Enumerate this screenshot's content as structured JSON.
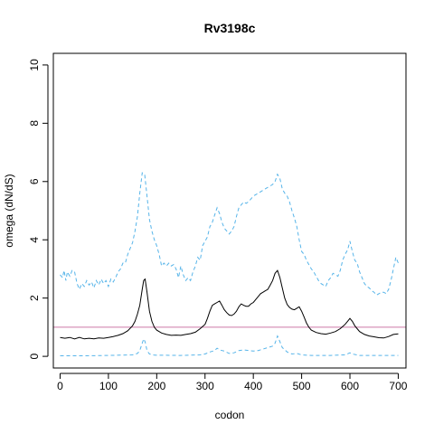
{
  "chart_data": {
    "type": "line",
    "title": "Rv3198c",
    "xlabel": "codon",
    "ylabel": "omega (dN/dS)",
    "xlim": [
      -14,
      716
    ],
    "ylim": [
      -0.4,
      10.4
    ],
    "x_ticks": [
      0,
      100,
      200,
      300,
      400,
      500,
      600,
      700
    ],
    "y_ticks": [
      0,
      2,
      4,
      6,
      8,
      10
    ],
    "grid": false,
    "legend": "none",
    "reference_line": {
      "y": 1,
      "color": "#cc79a7"
    },
    "series": [
      {
        "style": "dashed",
        "color": "#56b4e9",
        "role": "upper",
        "points": [
          [
            0,
            2.8
          ],
          [
            5,
            2.7
          ],
          [
            8,
            2.95
          ],
          [
            12,
            2.6
          ],
          [
            15,
            2.9
          ],
          [
            20,
            2.75
          ],
          [
            25,
            2.95
          ],
          [
            30,
            2.9
          ],
          [
            35,
            2.5
          ],
          [
            40,
            2.3
          ],
          [
            45,
            2.5
          ],
          [
            50,
            2.4
          ],
          [
            55,
            2.6
          ],
          [
            60,
            2.45
          ],
          [
            65,
            2.55
          ],
          [
            70,
            2.35
          ],
          [
            75,
            2.6
          ],
          [
            80,
            2.45
          ],
          [
            85,
            2.65
          ],
          [
            90,
            2.5
          ],
          [
            95,
            2.6
          ],
          [
            100,
            2.4
          ],
          [
            105,
            2.65
          ],
          [
            110,
            2.55
          ],
          [
            115,
            2.7
          ],
          [
            120,
            2.9
          ],
          [
            125,
            3.0
          ],
          [
            130,
            3.2
          ],
          [
            135,
            3.2
          ],
          [
            140,
            3.5
          ],
          [
            145,
            3.7
          ],
          [
            150,
            3.9
          ],
          [
            155,
            4.3
          ],
          [
            160,
            4.8
          ],
          [
            165,
            5.6
          ],
          [
            170,
            6.3
          ],
          [
            175,
            6.25
          ],
          [
            180,
            5.5
          ],
          [
            185,
            4.7
          ],
          [
            190,
            4.3
          ],
          [
            195,
            4.0
          ],
          [
            200,
            3.8
          ],
          [
            205,
            3.5
          ],
          [
            210,
            3.1
          ],
          [
            215,
            3.2
          ],
          [
            220,
            3.1
          ],
          [
            225,
            3.2
          ],
          [
            230,
            3.1
          ],
          [
            235,
            3.15
          ],
          [
            240,
            3.0
          ],
          [
            245,
            2.7
          ],
          [
            250,
            3.1
          ],
          [
            255,
            2.8
          ],
          [
            260,
            2.6
          ],
          [
            265,
            2.7
          ],
          [
            270,
            2.6
          ],
          [
            275,
            2.9
          ],
          [
            280,
            3.1
          ],
          [
            285,
            3.4
          ],
          [
            290,
            3.3
          ],
          [
            295,
            3.8
          ],
          [
            300,
            3.95
          ],
          [
            305,
            4.1
          ],
          [
            310,
            4.45
          ],
          [
            315,
            4.6
          ],
          [
            320,
            4.85
          ],
          [
            325,
            5.1
          ],
          [
            330,
            4.9
          ],
          [
            335,
            4.6
          ],
          [
            340,
            4.4
          ],
          [
            345,
            4.3
          ],
          [
            350,
            4.2
          ],
          [
            355,
            4.3
          ],
          [
            360,
            4.45
          ],
          [
            365,
            4.8
          ],
          [
            370,
            5.1
          ],
          [
            375,
            5.2
          ],
          [
            380,
            5.3
          ],
          [
            385,
            5.25
          ],
          [
            390,
            5.3
          ],
          [
            395,
            5.4
          ],
          [
            400,
            5.5
          ],
          [
            405,
            5.55
          ],
          [
            410,
            5.6
          ],
          [
            415,
            5.65
          ],
          [
            420,
            5.7
          ],
          [
            425,
            5.75
          ],
          [
            430,
            5.8
          ],
          [
            435,
            5.85
          ],
          [
            440,
            5.9
          ],
          [
            445,
            6.0
          ],
          [
            450,
            6.25
          ],
          [
            455,
            6.1
          ],
          [
            460,
            5.75
          ],
          [
            465,
            5.6
          ],
          [
            470,
            5.5
          ],
          [
            475,
            5.3
          ],
          [
            480,
            5.0
          ],
          [
            485,
            4.75
          ],
          [
            490,
            4.45
          ],
          [
            495,
            4.0
          ],
          [
            500,
            3.6
          ],
          [
            505,
            3.5
          ],
          [
            510,
            3.3
          ],
          [
            515,
            3.15
          ],
          [
            520,
            3.0
          ],
          [
            525,
            2.9
          ],
          [
            530,
            2.75
          ],
          [
            535,
            2.6
          ],
          [
            540,
            2.5
          ],
          [
            545,
            2.45
          ],
          [
            550,
            2.4
          ],
          [
            555,
            2.6
          ],
          [
            560,
            2.7
          ],
          [
            565,
            2.85
          ],
          [
            570,
            2.8
          ],
          [
            575,
            2.75
          ],
          [
            580,
            2.95
          ],
          [
            585,
            3.3
          ],
          [
            590,
            3.5
          ],
          [
            595,
            3.65
          ],
          [
            600,
            3.95
          ],
          [
            605,
            3.6
          ],
          [
            610,
            3.3
          ],
          [
            615,
            3.2
          ],
          [
            620,
            2.9
          ],
          [
            625,
            2.7
          ],
          [
            630,
            2.5
          ],
          [
            635,
            2.4
          ],
          [
            640,
            2.35
          ],
          [
            645,
            2.25
          ],
          [
            650,
            2.2
          ],
          [
            655,
            2.1
          ],
          [
            660,
            2.15
          ],
          [
            665,
            2.2
          ],
          [
            670,
            2.2
          ],
          [
            675,
            2.15
          ],
          [
            680,
            2.3
          ],
          [
            685,
            2.6
          ],
          [
            690,
            3.0
          ],
          [
            695,
            3.4
          ],
          [
            700,
            3.2
          ]
        ]
      },
      {
        "style": "solid",
        "color": "#000000",
        "role": "estimate",
        "points": [
          [
            0,
            0.65
          ],
          [
            10,
            0.62
          ],
          [
            20,
            0.65
          ],
          [
            30,
            0.6
          ],
          [
            40,
            0.65
          ],
          [
            50,
            0.6
          ],
          [
            60,
            0.62
          ],
          [
            70,
            0.6
          ],
          [
            80,
            0.63
          ],
          [
            90,
            0.62
          ],
          [
            100,
            0.65
          ],
          [
            110,
            0.68
          ],
          [
            120,
            0.72
          ],
          [
            130,
            0.78
          ],
          [
            140,
            0.88
          ],
          [
            150,
            1.05
          ],
          [
            155,
            1.2
          ],
          [
            160,
            1.45
          ],
          [
            165,
            1.75
          ],
          [
            170,
            2.3
          ],
          [
            173,
            2.6
          ],
          [
            176,
            2.65
          ],
          [
            180,
            2.2
          ],
          [
            185,
            1.55
          ],
          [
            190,
            1.2
          ],
          [
            195,
            1.0
          ],
          [
            200,
            0.9
          ],
          [
            210,
            0.8
          ],
          [
            220,
            0.75
          ],
          [
            230,
            0.72
          ],
          [
            240,
            0.73
          ],
          [
            250,
            0.72
          ],
          [
            260,
            0.75
          ],
          [
            270,
            0.78
          ],
          [
            280,
            0.83
          ],
          [
            290,
            0.95
          ],
          [
            300,
            1.1
          ],
          [
            305,
            1.3
          ],
          [
            310,
            1.55
          ],
          [
            315,
            1.75
          ],
          [
            320,
            1.8
          ],
          [
            325,
            1.85
          ],
          [
            330,
            1.9
          ],
          [
            335,
            1.75
          ],
          [
            340,
            1.6
          ],
          [
            345,
            1.5
          ],
          [
            350,
            1.42
          ],
          [
            355,
            1.4
          ],
          [
            360,
            1.45
          ],
          [
            365,
            1.55
          ],
          [
            370,
            1.7
          ],
          [
            375,
            1.8
          ],
          [
            380,
            1.75
          ],
          [
            385,
            1.72
          ],
          [
            390,
            1.72
          ],
          [
            395,
            1.8
          ],
          [
            400,
            1.85
          ],
          [
            405,
            1.95
          ],
          [
            410,
            2.05
          ],
          [
            415,
            2.15
          ],
          [
            420,
            2.2
          ],
          [
            425,
            2.25
          ],
          [
            430,
            2.3
          ],
          [
            435,
            2.45
          ],
          [
            440,
            2.6
          ],
          [
            445,
            2.85
          ],
          [
            450,
            2.95
          ],
          [
            455,
            2.7
          ],
          [
            460,
            2.35
          ],
          [
            465,
            2.0
          ],
          [
            470,
            1.78
          ],
          [
            475,
            1.68
          ],
          [
            480,
            1.62
          ],
          [
            485,
            1.6
          ],
          [
            490,
            1.65
          ],
          [
            495,
            1.7
          ],
          [
            500,
            1.55
          ],
          [
            505,
            1.35
          ],
          [
            510,
            1.15
          ],
          [
            515,
            1.0
          ],
          [
            520,
            0.9
          ],
          [
            530,
            0.82
          ],
          [
            540,
            0.78
          ],
          [
            550,
            0.76
          ],
          [
            560,
            0.8
          ],
          [
            570,
            0.85
          ],
          [
            580,
            0.95
          ],
          [
            590,
            1.1
          ],
          [
            595,
            1.2
          ],
          [
            600,
            1.3
          ],
          [
            605,
            1.2
          ],
          [
            610,
            1.05
          ],
          [
            615,
            0.95
          ],
          [
            620,
            0.85
          ],
          [
            630,
            0.75
          ],
          [
            640,
            0.7
          ],
          [
            650,
            0.67
          ],
          [
            660,
            0.64
          ],
          [
            670,
            0.63
          ],
          [
            680,
            0.68
          ],
          [
            690,
            0.75
          ],
          [
            700,
            0.77
          ]
        ]
      },
      {
        "style": "dashed",
        "color": "#56b4e9",
        "role": "lower",
        "points": [
          [
            0,
            0.02
          ],
          [
            50,
            0.02
          ],
          [
            100,
            0.03
          ],
          [
            150,
            0.05
          ],
          [
            160,
            0.1
          ],
          [
            165,
            0.2
          ],
          [
            170,
            0.45
          ],
          [
            173,
            0.6
          ],
          [
            176,
            0.5
          ],
          [
            180,
            0.2
          ],
          [
            185,
            0.08
          ],
          [
            195,
            0.04
          ],
          [
            250,
            0.03
          ],
          [
            290,
            0.05
          ],
          [
            300,
            0.08
          ],
          [
            310,
            0.15
          ],
          [
            320,
            0.2
          ],
          [
            325,
            0.28
          ],
          [
            330,
            0.22
          ],
          [
            340,
            0.18
          ],
          [
            350,
            0.1
          ],
          [
            360,
            0.12
          ],
          [
            370,
            0.2
          ],
          [
            380,
            0.22
          ],
          [
            390,
            0.2
          ],
          [
            400,
            0.18
          ],
          [
            410,
            0.2
          ],
          [
            420,
            0.25
          ],
          [
            430,
            0.3
          ],
          [
            440,
            0.35
          ],
          [
            445,
            0.45
          ],
          [
            450,
            0.7
          ],
          [
            455,
            0.5
          ],
          [
            460,
            0.3
          ],
          [
            470,
            0.15
          ],
          [
            480,
            0.08
          ],
          [
            490,
            0.1
          ],
          [
            500,
            0.05
          ],
          [
            520,
            0.03
          ],
          [
            560,
            0.03
          ],
          [
            590,
            0.05
          ],
          [
            600,
            0.12
          ],
          [
            605,
            0.08
          ],
          [
            620,
            0.03
          ],
          [
            700,
            0.03
          ]
        ]
      }
    ]
  }
}
